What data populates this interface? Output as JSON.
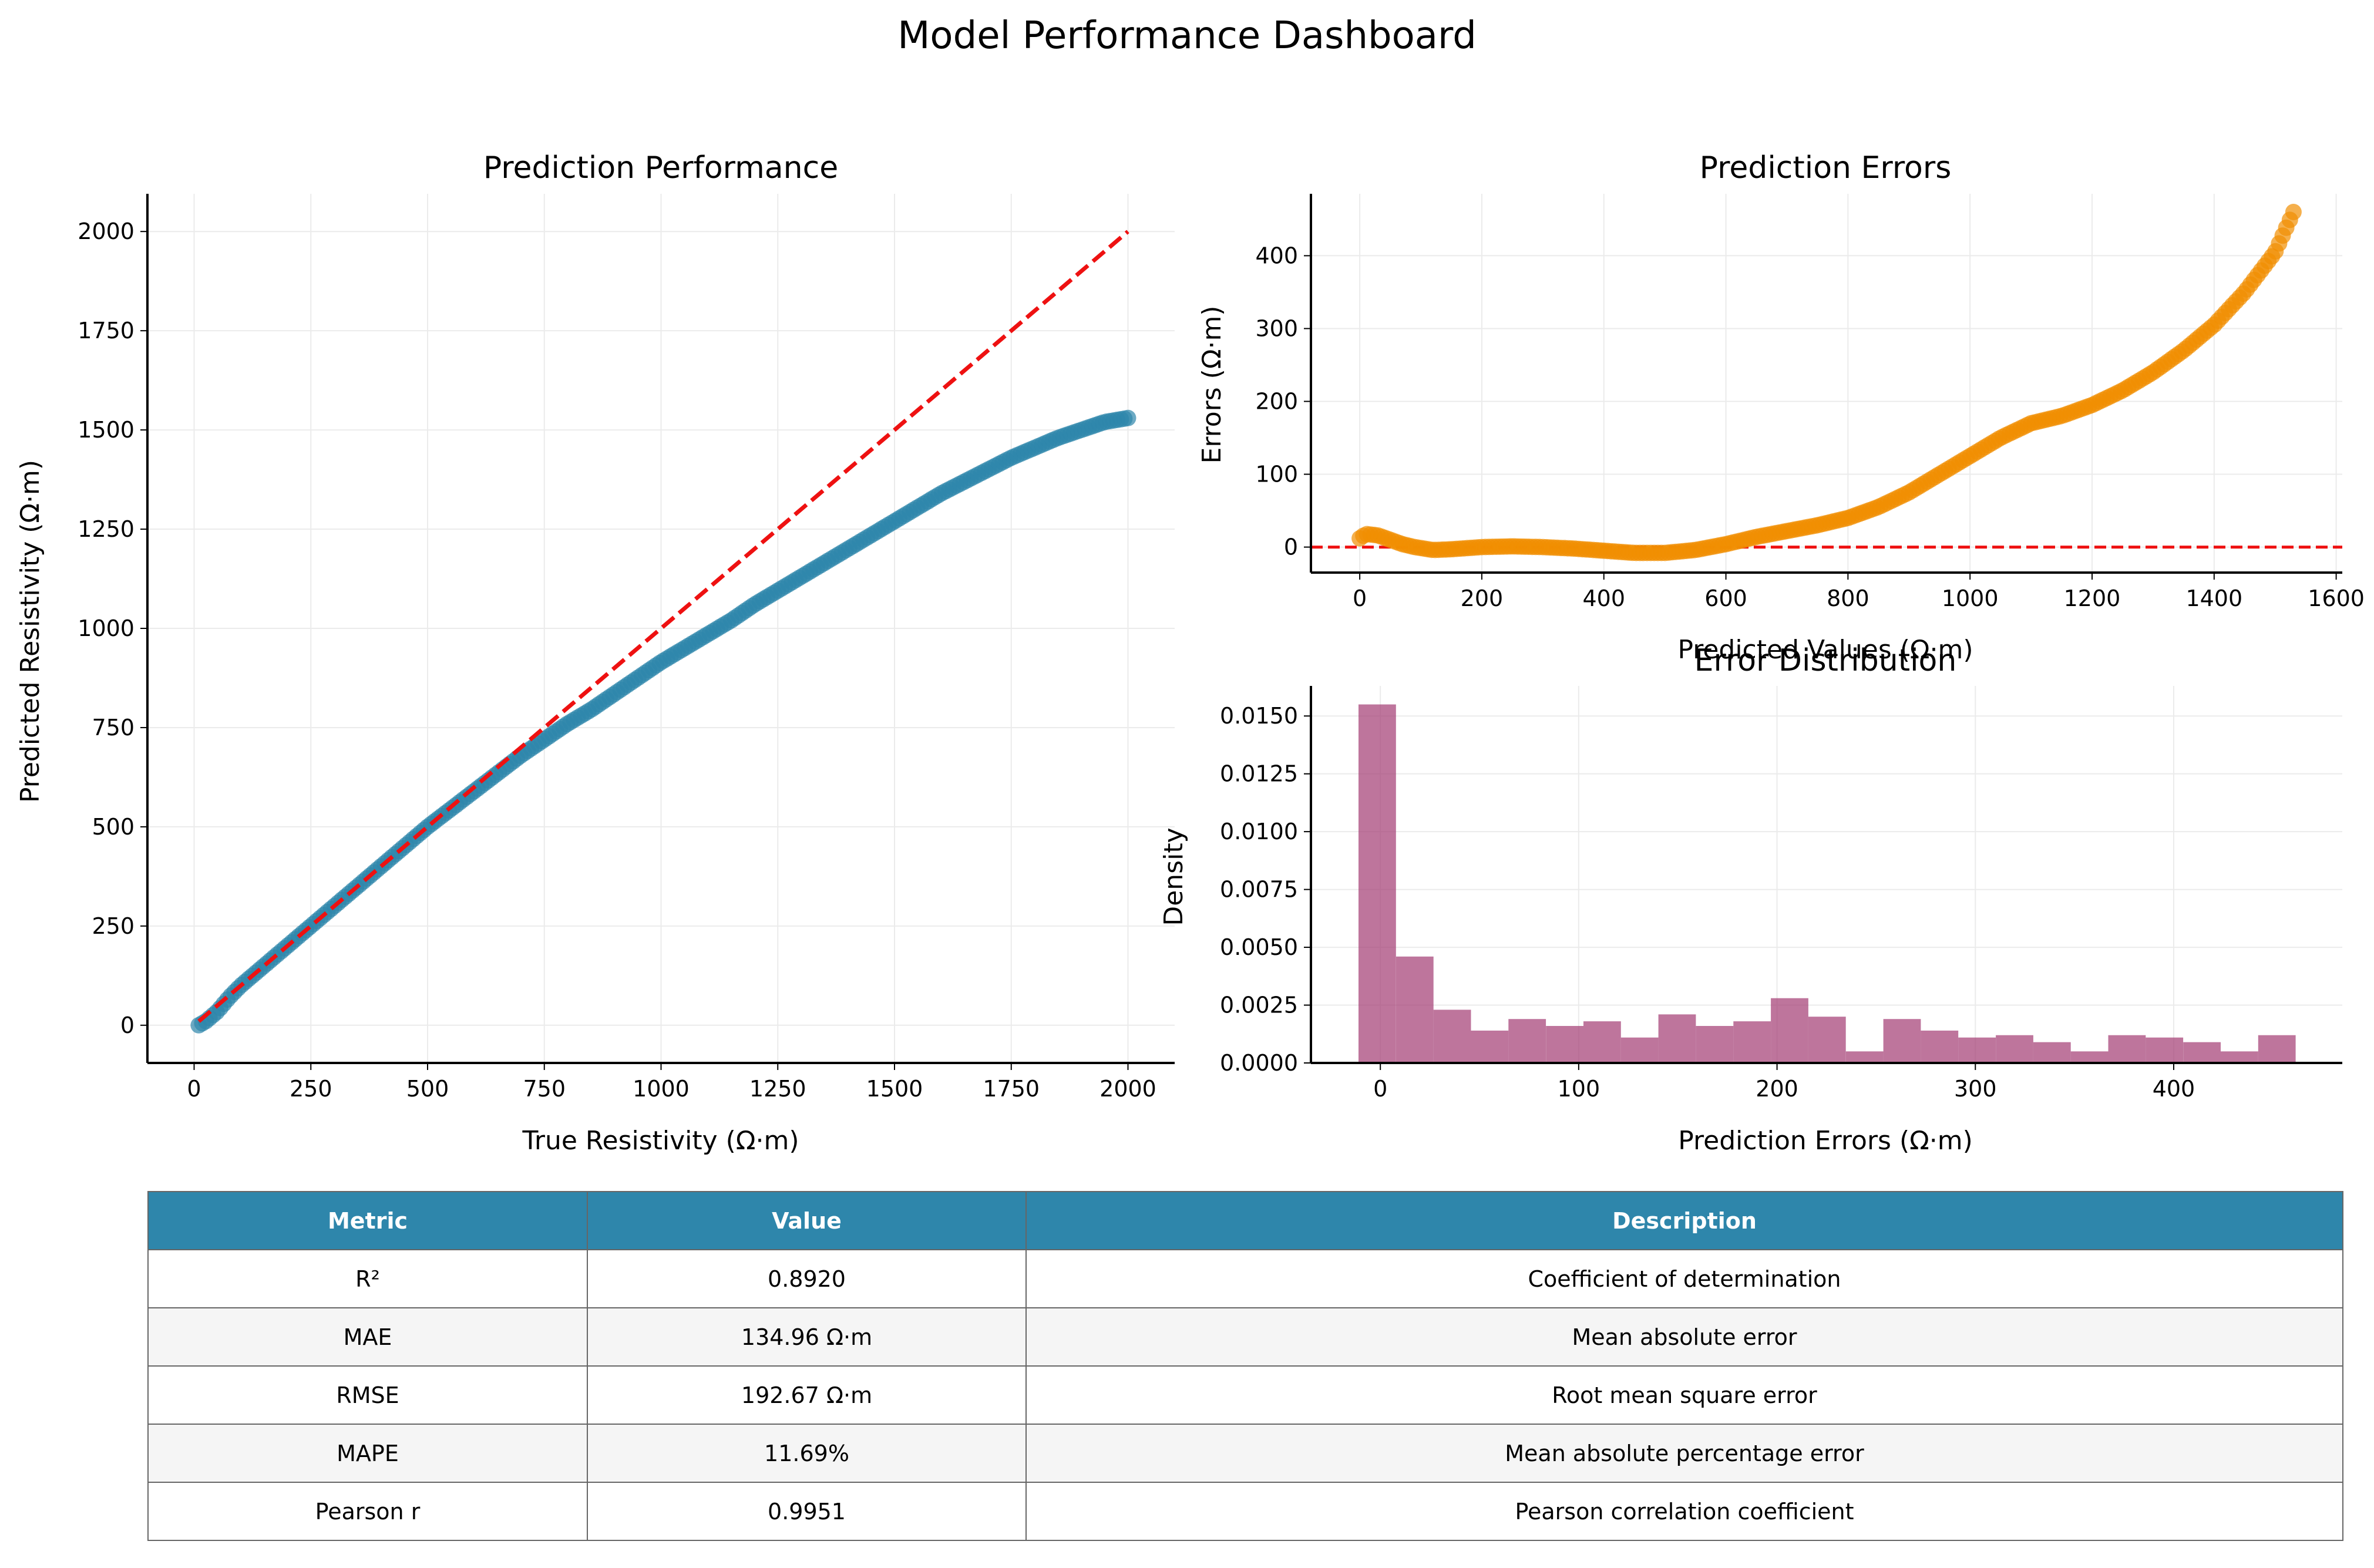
{
  "title": "Model Performance Dashboard",
  "colors": {
    "scatter": "#2e86ab",
    "errors": "#f18f01",
    "hist": "#a23b72",
    "refline": "#ee1111",
    "header": "#2e86ab"
  },
  "chart_data": [
    {
      "type": "scatter",
      "title": "Prediction Performance",
      "xlabel": "True Resistivity (Ω·m)",
      "ylabel": "Predicted Resistivity (Ω·m)",
      "xlim": [
        -100,
        2100
      ],
      "ylim": [
        -95,
        2095
      ],
      "xticks": [
        0,
        250,
        500,
        750,
        1000,
        1250,
        1500,
        1750,
        2000
      ],
      "yticks": [
        0,
        250,
        500,
        750,
        1000,
        1250,
        1500,
        1750,
        2000
      ],
      "grid": true,
      "reference_line": {
        "style": "dashed",
        "from": [
          10,
          10
        ],
        "to": [
          2000,
          2000
        ]
      },
      "curve": [
        [
          10,
          0
        ],
        [
          25,
          10
        ],
        [
          50,
          35
        ],
        [
          75,
          70
        ],
        [
          100,
          100
        ],
        [
          150,
          150
        ],
        [
          200,
          200
        ],
        [
          250,
          250
        ],
        [
          300,
          300
        ],
        [
          350,
          350
        ],
        [
          400,
          400
        ],
        [
          450,
          450
        ],
        [
          500,
          500
        ],
        [
          550,
          545
        ],
        [
          600,
          590
        ],
        [
          650,
          635
        ],
        [
          700,
          680
        ],
        [
          750,
          720
        ],
        [
          800,
          760
        ],
        [
          850,
          795
        ],
        [
          900,
          835
        ],
        [
          950,
          875
        ],
        [
          1000,
          915
        ],
        [
          1050,
          950
        ],
        [
          1100,
          985
        ],
        [
          1150,
          1020
        ],
        [
          1200,
          1060
        ],
        [
          1250,
          1095
        ],
        [
          1300,
          1130
        ],
        [
          1350,
          1165
        ],
        [
          1400,
          1200
        ],
        [
          1450,
          1235
        ],
        [
          1500,
          1270
        ],
        [
          1550,
          1305
        ],
        [
          1600,
          1340
        ],
        [
          1650,
          1370
        ],
        [
          1700,
          1400
        ],
        [
          1750,
          1430
        ],
        [
          1800,
          1455
        ],
        [
          1850,
          1480
        ],
        [
          1900,
          1500
        ],
        [
          1950,
          1520
        ],
        [
          2000,
          1530
        ]
      ]
    },
    {
      "type": "scatter",
      "title": "Prediction Errors",
      "xlabel": "Predicted Values (Ω·m)",
      "ylabel": "Errors (Ω·m)",
      "xlim": [
        -80,
        1610
      ],
      "ylim": [
        -35,
        485
      ],
      "xticks": [
        0,
        200,
        400,
        600,
        800,
        1000,
        1200,
        1400,
        1600
      ],
      "yticks": [
        0,
        100,
        200,
        300,
        400
      ],
      "grid": true,
      "reference_line": {
        "style": "dashed",
        "y": 0
      },
      "curve": [
        [
          0,
          12
        ],
        [
          10,
          18
        ],
        [
          30,
          16
        ],
        [
          50,
          10
        ],
        [
          70,
          4
        ],
        [
          90,
          0
        ],
        [
          120,
          -4
        ],
        [
          150,
          -3
        ],
        [
          200,
          0
        ],
        [
          250,
          1
        ],
        [
          300,
          0
        ],
        [
          350,
          -2
        ],
        [
          400,
          -5
        ],
        [
          450,
          -8
        ],
        [
          500,
          -8
        ],
        [
          550,
          -4
        ],
        [
          600,
          4
        ],
        [
          650,
          14
        ],
        [
          700,
          22
        ],
        [
          750,
          30
        ],
        [
          800,
          40
        ],
        [
          850,
          55
        ],
        [
          900,
          75
        ],
        [
          950,
          100
        ],
        [
          1000,
          125
        ],
        [
          1050,
          150
        ],
        [
          1100,
          170
        ],
        [
          1150,
          180
        ],
        [
          1200,
          195
        ],
        [
          1250,
          215
        ],
        [
          1300,
          240
        ],
        [
          1350,
          270
        ],
        [
          1400,
          305
        ],
        [
          1450,
          350
        ],
        [
          1500,
          405
        ],
        [
          1530,
          460
        ]
      ]
    },
    {
      "type": "bar",
      "title": "Error Distribution",
      "xlabel": "Prediction Errors (Ω·m)",
      "ylabel": "Density",
      "xlim": [
        -35,
        485
      ],
      "ylim": [
        0,
        0.0163
      ],
      "xticks": [
        0,
        100,
        200,
        300,
        400
      ],
      "yticks": [
        0,
        0.0025,
        0.005,
        0.0075,
        0.01,
        0.0125,
        0.015
      ],
      "ytick_labels": [
        "0.0000",
        "0.0025",
        "0.0050",
        "0.0075",
        "0.0100",
        "0.0125",
        "0.0150"
      ],
      "grid": true,
      "bin_start": -11,
      "bin_width": 18.9,
      "values": [
        0.0155,
        0.0046,
        0.0023,
        0.0014,
        0.0019,
        0.0016,
        0.0018,
        0.0011,
        0.0021,
        0.0016,
        0.0018,
        0.0028,
        0.002,
        0.0005,
        0.0019,
        0.0014,
        0.0011,
        0.0012,
        0.0009,
        0.0005,
        0.0012,
        0.0011,
        0.0009,
        0.0005,
        0.0012
      ]
    }
  ],
  "table": {
    "headers": [
      "Metric",
      "Value",
      "Description"
    ],
    "rows": [
      [
        "R²",
        "0.8920",
        "Coefficient of determination"
      ],
      [
        "MAE",
        "134.96 Ω·m",
        "Mean absolute error"
      ],
      [
        "RMSE",
        "192.67 Ω·m",
        "Root mean square error"
      ],
      [
        "MAPE",
        "11.69%",
        "Mean absolute percentage error"
      ],
      [
        "Pearson r",
        "0.9951",
        "Pearson correlation coefficient"
      ]
    ]
  }
}
